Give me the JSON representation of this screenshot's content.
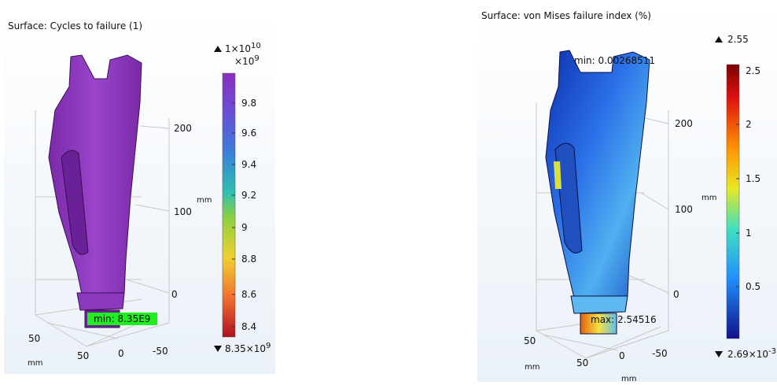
{
  "panels": [
    {
      "title": "Surface: Cycles to failure (1)",
      "max_label": {
        "base": "1×10",
        "exp": "10"
      },
      "scale_label": {
        "base": "×10",
        "exp": "9"
      },
      "min_label": {
        "base": "8.35×10",
        "exp": "9"
      },
      "colorbar_ticks": [
        "9.8",
        "9.6",
        "9.4",
        "9.2",
        "9",
        "8.8",
        "8.6",
        "8.4"
      ],
      "axis_unit": "mm",
      "z_ticks": [
        "200",
        "100",
        "0"
      ],
      "x_ticks": [
        "50",
        "50",
        "0",
        "-50"
      ],
      "x_unit": "mm",
      "annotations": [
        "min: 8.35E9"
      ]
    },
    {
      "title": "Surface: von Mises failure index (%)",
      "max_label": {
        "base": "2.55"
      },
      "min_label": {
        "base": "2.69×10",
        "exp": "-3"
      },
      "colorbar_ticks": [
        "2.5",
        "2",
        "1.5",
        "1",
        "0.5"
      ],
      "axis_unit": "mm",
      "z_ticks": [
        "200",
        "100",
        "0"
      ],
      "x_ticks": [
        "50",
        "50",
        "0",
        "-50"
      ],
      "x_unit": "mm",
      "y_unit": "mm",
      "annotations": [
        "min: 0.00268511",
        "max: 2.54516"
      ]
    }
  ]
}
